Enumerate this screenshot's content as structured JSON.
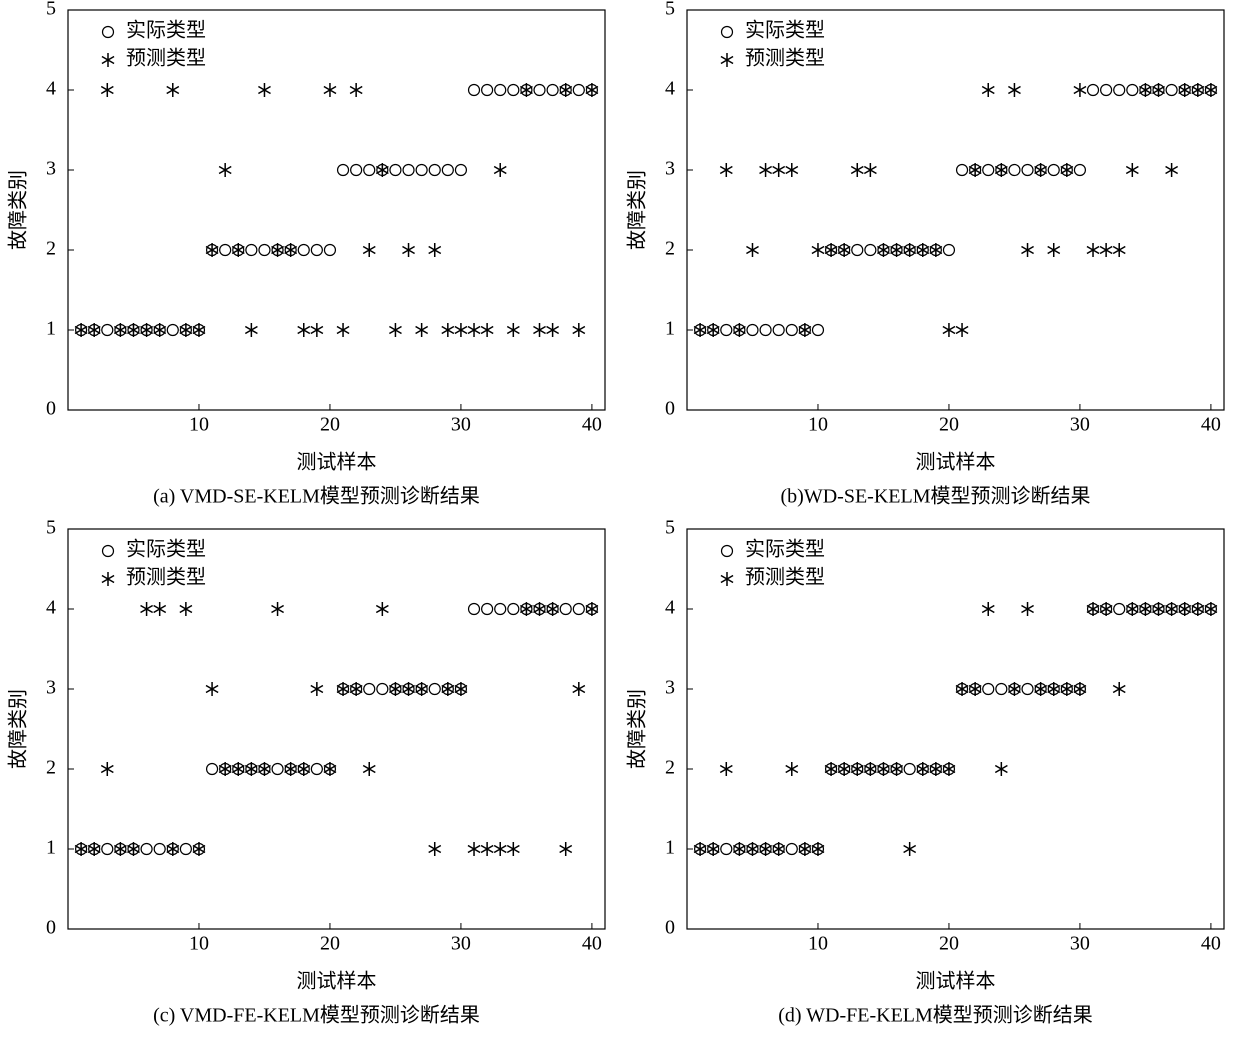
{
  "chart_data": [
    {
      "type": "scatter",
      "title": "(a) VMD-SE-KELM模型预测诊断结果",
      "xlabel": "测试样本",
      "ylabel": "故障类别",
      "x": [
        1,
        2,
        3,
        4,
        5,
        6,
        7,
        8,
        9,
        10,
        11,
        12,
        13,
        14,
        15,
        16,
        17,
        18,
        19,
        20,
        21,
        22,
        23,
        24,
        25,
        26,
        27,
        28,
        29,
        30,
        31,
        32,
        33,
        34,
        35,
        36,
        37,
        38,
        39,
        40
      ],
      "series": [
        {
          "name": "实际类型",
          "marker": "circle",
          "color": "#000000",
          "values": [
            1,
            1,
            1,
            1,
            1,
            1,
            1,
            1,
            1,
            1,
            2,
            2,
            2,
            2,
            2,
            2,
            2,
            2,
            2,
            2,
            3,
            3,
            3,
            3,
            3,
            3,
            3,
            3,
            3,
            3,
            4,
            4,
            4,
            4,
            4,
            4,
            4,
            4,
            4,
            4
          ]
        },
        {
          "name": "预测类型",
          "marker": "star",
          "color": "#000000",
          "values": [
            1,
            1,
            4,
            1,
            1,
            1,
            1,
            4,
            1,
            1,
            2,
            3,
            2,
            1,
            4,
            2,
            2,
            1,
            1,
            4,
            1,
            4,
            2,
            3,
            1,
            2,
            1,
            2,
            1,
            1,
            1,
            1,
            3,
            1,
            4,
            1,
            1,
            4,
            1,
            4
          ]
        }
      ],
      "xlim": [
        0,
        41
      ],
      "ylim": [
        0,
        5
      ],
      "xticks": [
        10,
        20,
        30,
        40
      ],
      "yticks": [
        0,
        1,
        2,
        3,
        4,
        5
      ],
      "legend": "upper left"
    },
    {
      "type": "scatter",
      "title": "(b)WD-SE-KELM模型预测诊断结果",
      "xlabel": "测试样本",
      "ylabel": "故障类别",
      "x": [
        1,
        2,
        3,
        4,
        5,
        6,
        7,
        8,
        9,
        10,
        11,
        12,
        13,
        14,
        15,
        16,
        17,
        18,
        19,
        20,
        21,
        22,
        23,
        24,
        25,
        26,
        27,
        28,
        29,
        30,
        31,
        32,
        33,
        34,
        35,
        36,
        37,
        38,
        39,
        40
      ],
      "series": [
        {
          "name": "实际类型",
          "marker": "circle",
          "color": "#000000",
          "values": [
            1,
            1,
            1,
            1,
            1,
            1,
            1,
            1,
            1,
            1,
            2,
            2,
            2,
            2,
            2,
            2,
            2,
            2,
            2,
            2,
            3,
            3,
            3,
            3,
            3,
            3,
            3,
            3,
            3,
            3,
            4,
            4,
            4,
            4,
            4,
            4,
            4,
            4,
            4,
            4
          ]
        },
        {
          "name": "预测类型",
          "marker": "star",
          "color": "#000000",
          "values": [
            1,
            1,
            3,
            1,
            2,
            3,
            3,
            3,
            1,
            2,
            2,
            2,
            3,
            3,
            2,
            2,
            2,
            2,
            2,
            1,
            1,
            3,
            4,
            3,
            4,
            2,
            3,
            2,
            3,
            4,
            2,
            2,
            2,
            3,
            4,
            4,
            3,
            4,
            4,
            4
          ]
        }
      ],
      "xlim": [
        0,
        41
      ],
      "ylim": [
        0,
        5
      ],
      "xticks": [
        10,
        20,
        30,
        40
      ],
      "yticks": [
        0,
        1,
        2,
        3,
        4,
        5
      ],
      "legend": "upper left"
    },
    {
      "type": "scatter",
      "title": "(c) VMD-FE-KELM模型预测诊断结果",
      "xlabel": "测试样本",
      "ylabel": "故障类别",
      "x": [
        1,
        2,
        3,
        4,
        5,
        6,
        7,
        8,
        9,
        10,
        11,
        12,
        13,
        14,
        15,
        16,
        17,
        18,
        19,
        20,
        21,
        22,
        23,
        24,
        25,
        26,
        27,
        28,
        29,
        30,
        31,
        32,
        33,
        34,
        35,
        36,
        37,
        38,
        39,
        40
      ],
      "series": [
        {
          "name": "实际类型",
          "marker": "circle",
          "color": "#000000",
          "values": [
            1,
            1,
            1,
            1,
            1,
            1,
            1,
            1,
            1,
            1,
            2,
            2,
            2,
            2,
            2,
            2,
            2,
            2,
            2,
            2,
            3,
            3,
            3,
            3,
            3,
            3,
            3,
            3,
            3,
            3,
            4,
            4,
            4,
            4,
            4,
            4,
            4,
            4,
            4,
            4
          ]
        },
        {
          "name": "预测类型",
          "marker": "star",
          "color": "#000000",
          "values": [
            1,
            1,
            2,
            1,
            1,
            4,
            4,
            1,
            4,
            1,
            3,
            2,
            2,
            2,
            2,
            4,
            2,
            2,
            3,
            2,
            3,
            3,
            2,
            4,
            3,
            3,
            3,
            1,
            3,
            3,
            1,
            1,
            1,
            1,
            4,
            4,
            4,
            1,
            3,
            4
          ]
        }
      ],
      "xlim": [
        0,
        41
      ],
      "ylim": [
        0,
        5
      ],
      "xticks": [
        10,
        20,
        30,
        40
      ],
      "yticks": [
        0,
        1,
        2,
        3,
        4,
        5
      ],
      "legend": "upper left"
    },
    {
      "type": "scatter",
      "title": "(d) WD-FE-KELM模型预测诊断结果",
      "xlabel": "测试样本",
      "ylabel": "故障类别",
      "x": [
        1,
        2,
        3,
        4,
        5,
        6,
        7,
        8,
        9,
        10,
        11,
        12,
        13,
        14,
        15,
        16,
        17,
        18,
        19,
        20,
        21,
        22,
        23,
        24,
        25,
        26,
        27,
        28,
        29,
        30,
        31,
        32,
        33,
        34,
        35,
        36,
        37,
        38,
        39,
        40
      ],
      "series": [
        {
          "name": "实际类型",
          "marker": "circle",
          "color": "#000000",
          "values": [
            1,
            1,
            1,
            1,
            1,
            1,
            1,
            1,
            1,
            1,
            2,
            2,
            2,
            2,
            2,
            2,
            2,
            2,
            2,
            2,
            3,
            3,
            3,
            3,
            3,
            3,
            3,
            3,
            3,
            3,
            4,
            4,
            4,
            4,
            4,
            4,
            4,
            4,
            4,
            4
          ]
        },
        {
          "name": "预测类型",
          "marker": "star",
          "color": "#000000",
          "values": [
            1,
            1,
            2,
            1,
            1,
            1,
            1,
            2,
            1,
            1,
            2,
            2,
            2,
            2,
            2,
            2,
            1,
            2,
            2,
            2,
            3,
            3,
            4,
            2,
            3,
            4,
            3,
            3,
            3,
            3,
            4,
            4,
            3,
            4,
            4,
            4,
            4,
            4,
            4,
            4
          ]
        }
      ],
      "xlim": [
        0,
        41
      ],
      "ylim": [
        0,
        5
      ],
      "xticks": [
        10,
        20,
        30,
        40
      ],
      "yticks": [
        0,
        1,
        2,
        3,
        4,
        5
      ],
      "legend": "upper left"
    }
  ]
}
